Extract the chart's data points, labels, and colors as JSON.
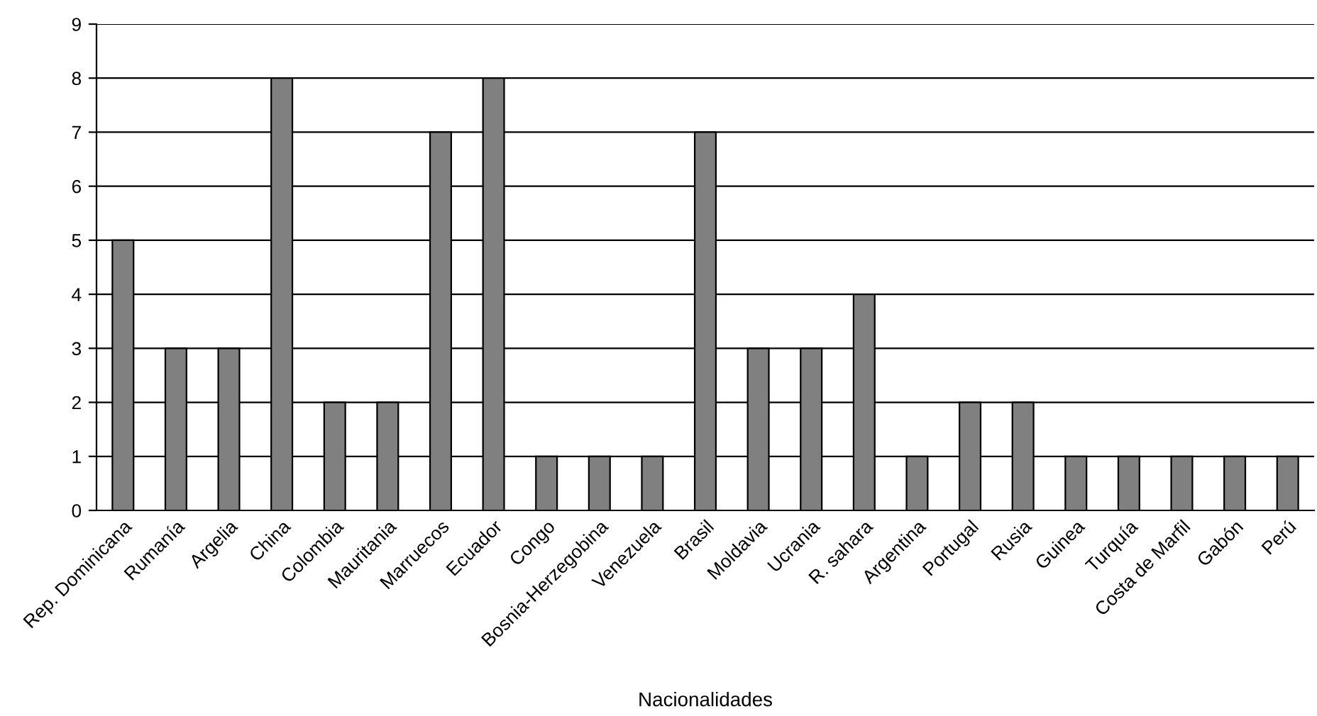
{
  "chart_data": {
    "type": "bar",
    "xlabel": "Nacionalidades",
    "categories": [
      "Rep. Dominicana",
      "Rumanía",
      "Argelia",
      "China",
      "Colombia",
      "Mauritania",
      "Marruecos",
      "Ecuador",
      "Congo",
      "Bosnia-Herzegobina",
      "Venezuela",
      "Brasil",
      "Moldavia",
      "Ucrania",
      "R. sahara",
      "Argentina",
      "Portugal",
      "Rusia",
      "Guinea",
      "Turquía",
      "Costa de Marfil",
      "Gabón",
      "Perú"
    ],
    "values": [
      5,
      3,
      3,
      8,
      2,
      2,
      7,
      8,
      1,
      1,
      1,
      7,
      3,
      3,
      4,
      1,
      2,
      2,
      1,
      1,
      1,
      1,
      1
    ],
    "color": "#808080",
    "ylim": [
      0,
      9
    ],
    "yticks": [
      0,
      1,
      2,
      3,
      4,
      5,
      6,
      7,
      8,
      9
    ],
    "grid": "y"
  }
}
